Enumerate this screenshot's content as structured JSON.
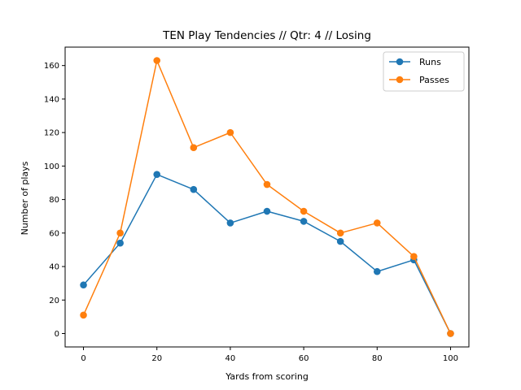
{
  "chart_data": {
    "type": "line",
    "title": "TEN Play Tendencies // Qtr: 4 // Losing",
    "xlabel": "Yards from scoring",
    "ylabel": "Number of plays",
    "x": [
      0,
      10,
      20,
      30,
      40,
      50,
      60,
      70,
      80,
      90,
      100
    ],
    "xlim": [
      -5,
      105
    ],
    "ylim": [
      -8,
      171
    ],
    "xticks": [
      0,
      20,
      40,
      60,
      80,
      100
    ],
    "yticks": [
      0,
      20,
      40,
      60,
      80,
      100,
      120,
      140,
      160
    ],
    "grid": false,
    "legend_position": "top-right",
    "series": [
      {
        "name": "Runs",
        "color": "#1f77b4",
        "marker": "circle",
        "values": [
          29,
          54,
          95,
          86,
          66,
          73,
          67,
          55,
          37,
          44,
          0
        ]
      },
      {
        "name": "Passes",
        "color": "#ff7f0e",
        "marker": "circle",
        "values": [
          11,
          60,
          163,
          111,
          120,
          89,
          73,
          60,
          66,
          46,
          0
        ]
      }
    ]
  }
}
